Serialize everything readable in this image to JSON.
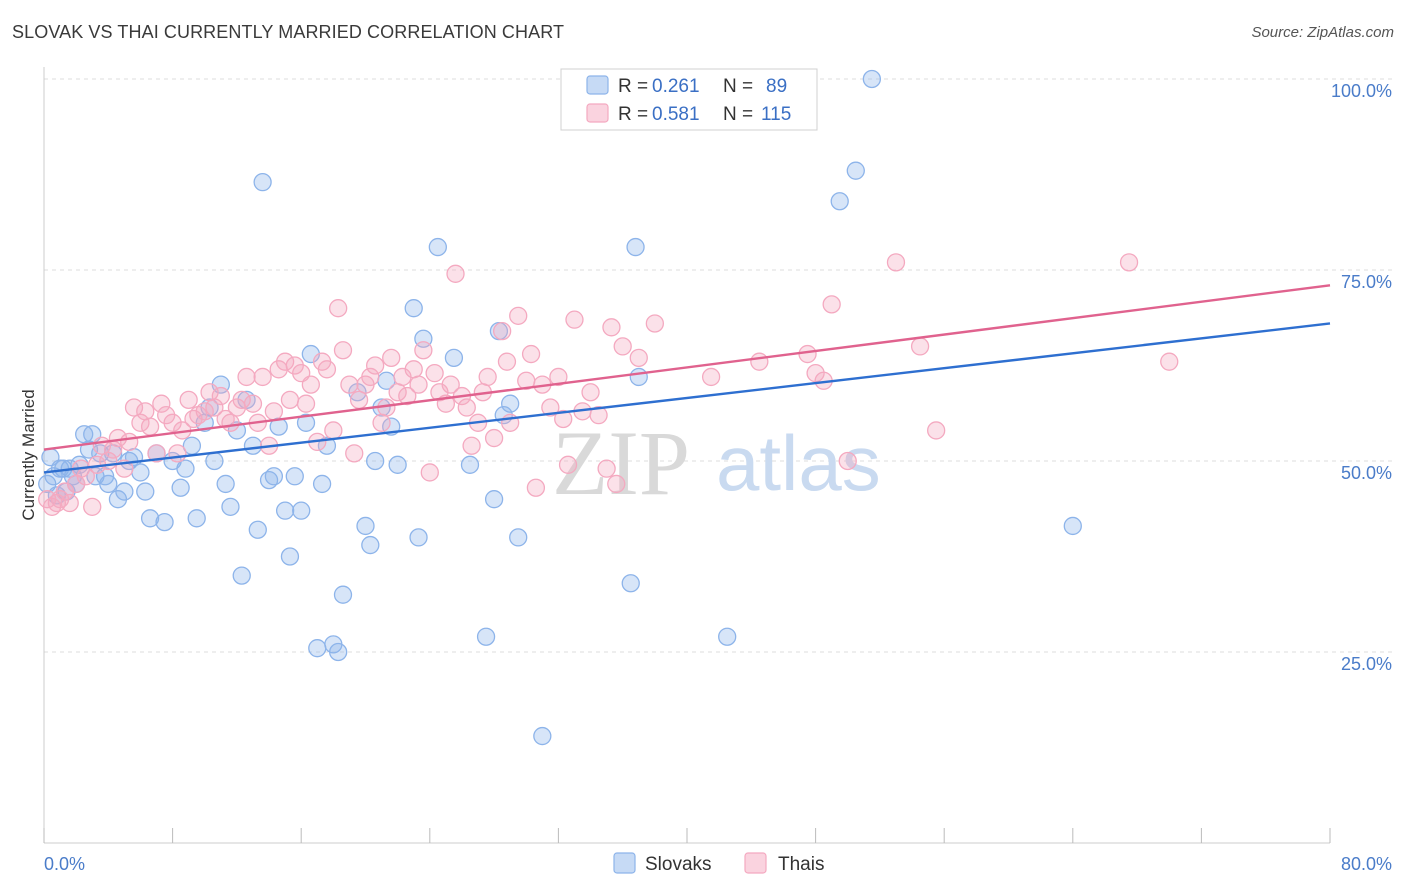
{
  "title": "SLOVAK VS THAI CURRENTLY MARRIED CORRELATION CHART",
  "source": "Source: ZipAtlas.com",
  "watermark": {
    "zip": "ZIP",
    "atlas": "atlas"
  },
  "colors": {
    "slovaks": "#8db4ea",
    "slovaks_line": "#2e6fd0",
    "thais": "#f4a9c0",
    "thais_line": "#e0628e",
    "tick": "#4a7cc9"
  },
  "legend": {
    "r_label": "R =",
    "n_label": "N =",
    "slovaks": {
      "r": "0.261",
      "n": "89"
    },
    "thais": {
      "r": "0.581",
      "n": "115"
    }
  },
  "chart_data": {
    "type": "scatter",
    "title": "SLOVAK VS THAI CURRENTLY MARRIED CORRELATION CHART",
    "xlabel": "",
    "ylabel": "Currently Married",
    "xlim": [
      0,
      80
    ],
    "ylim": [
      0,
      105
    ],
    "x_tick_labels": [
      "0.0%",
      "80.0%"
    ],
    "y_ticks": [
      25,
      50,
      75,
      100
    ],
    "y_tick_labels": [
      "25.0%",
      "50.0%",
      "75.0%",
      "100.0%"
    ],
    "grid": "horizontal dashed",
    "legend_placement": "top-center",
    "series": [
      {
        "name": "Slovaks",
        "r": 0.261,
        "n": 89,
        "trend": {
          "x": [
            0,
            80
          ],
          "y": [
            48.5,
            68.0
          ]
        },
        "points": [
          [
            0.2,
            47
          ],
          [
            0.4,
            50.5
          ],
          [
            0.6,
            48
          ],
          [
            0.8,
            45.5
          ],
          [
            1.0,
            49
          ],
          [
            1.2,
            49
          ],
          [
            1.4,
            46
          ],
          [
            1.6,
            49
          ],
          [
            1.8,
            48
          ],
          [
            2.0,
            47
          ],
          [
            2.2,
            49.5
          ],
          [
            2.5,
            53.5
          ],
          [
            2.8,
            51.5
          ],
          [
            3.0,
            53.5
          ],
          [
            3.2,
            48
          ],
          [
            3.5,
            51
          ],
          [
            3.8,
            48
          ],
          [
            4.0,
            47
          ],
          [
            4.3,
            51
          ],
          [
            4.6,
            45
          ],
          [
            5.0,
            46
          ],
          [
            5.3,
            50
          ],
          [
            5.6,
            50.5
          ],
          [
            6.0,
            48.5
          ],
          [
            6.3,
            46
          ],
          [
            6.6,
            42.5
          ],
          [
            7.0,
            51
          ],
          [
            7.5,
            42
          ],
          [
            8.0,
            50
          ],
          [
            8.5,
            46.5
          ],
          [
            8.8,
            49
          ],
          [
            9.2,
            52
          ],
          [
            9.5,
            42.5
          ],
          [
            10.0,
            55
          ],
          [
            10.3,
            57
          ],
          [
            10.6,
            50
          ],
          [
            11.0,
            60
          ],
          [
            11.3,
            47
          ],
          [
            11.6,
            44
          ],
          [
            12.0,
            54
          ],
          [
            12.3,
            35
          ],
          [
            12.6,
            58
          ],
          [
            13.0,
            52
          ],
          [
            13.3,
            41
          ],
          [
            13.6,
            86.5
          ],
          [
            14.0,
            47.5
          ],
          [
            14.3,
            48
          ],
          [
            14.6,
            54.5
          ],
          [
            15.0,
            43.5
          ],
          [
            15.3,
            37.5
          ],
          [
            15.6,
            48
          ],
          [
            16.0,
            43.5
          ],
          [
            16.3,
            55
          ],
          [
            16.6,
            64
          ],
          [
            17.0,
            25.5
          ],
          [
            17.3,
            47
          ],
          [
            17.6,
            52
          ],
          [
            18.0,
            26
          ],
          [
            18.3,
            25
          ],
          [
            18.6,
            32.5
          ],
          [
            19.5,
            59
          ],
          [
            20.0,
            41.5
          ],
          [
            20.3,
            39
          ],
          [
            20.6,
            50
          ],
          [
            21.0,
            57
          ],
          [
            21.3,
            60.5
          ],
          [
            21.6,
            54.5
          ],
          [
            22.0,
            49.5
          ],
          [
            23.0,
            70
          ],
          [
            23.3,
            40
          ],
          [
            23.6,
            66
          ],
          [
            24.5,
            78
          ],
          [
            25.5,
            63.5
          ],
          [
            26.5,
            49.5
          ],
          [
            27.5,
            27
          ],
          [
            28.0,
            45
          ],
          [
            28.3,
            67
          ],
          [
            28.6,
            56
          ],
          [
            29.0,
            57.5
          ],
          [
            29.5,
            40
          ],
          [
            31.0,
            14
          ],
          [
            36.5,
            34
          ],
          [
            36.8,
            78
          ],
          [
            37.0,
            61
          ],
          [
            42.5,
            27
          ],
          [
            49.5,
            84
          ],
          [
            50.5,
            88
          ],
          [
            51.5,
            100
          ],
          [
            64.0,
            41.5
          ]
        ]
      },
      {
        "name": "Thais",
        "r": 0.581,
        "n": 115,
        "trend": {
          "x": [
            0,
            80
          ],
          "y": [
            51.5,
            73.0
          ]
        },
        "points": [
          [
            0.2,
            45
          ],
          [
            0.5,
            44
          ],
          [
            0.8,
            44.5
          ],
          [
            1.0,
            45
          ],
          [
            1.3,
            46
          ],
          [
            1.6,
            44.5
          ],
          [
            2.0,
            47
          ],
          [
            2.3,
            49
          ],
          [
            2.6,
            48
          ],
          [
            3.0,
            44
          ],
          [
            3.3,
            49.5
          ],
          [
            3.6,
            52
          ],
          [
            4.0,
            50
          ],
          [
            4.3,
            51.5
          ],
          [
            4.6,
            53
          ],
          [
            5.0,
            49
          ],
          [
            5.3,
            52.5
          ],
          [
            5.6,
            57
          ],
          [
            6.0,
            55
          ],
          [
            6.3,
            56.5
          ],
          [
            6.6,
            54.5
          ],
          [
            7.0,
            51
          ],
          [
            7.3,
            57.5
          ],
          [
            7.6,
            56
          ],
          [
            8.0,
            55
          ],
          [
            8.3,
            51
          ],
          [
            8.6,
            54
          ],
          [
            9.0,
            58
          ],
          [
            9.3,
            55.5
          ],
          [
            9.6,
            56
          ],
          [
            10.0,
            56.5
          ],
          [
            10.3,
            59
          ],
          [
            10.6,
            57
          ],
          [
            11.0,
            58.5
          ],
          [
            11.3,
            55.5
          ],
          [
            11.6,
            55
          ],
          [
            12.0,
            57
          ],
          [
            12.3,
            58
          ],
          [
            12.6,
            61
          ],
          [
            13.0,
            57.5
          ],
          [
            13.3,
            55
          ],
          [
            13.6,
            61
          ],
          [
            14.0,
            52
          ],
          [
            14.3,
            56.5
          ],
          [
            14.6,
            62
          ],
          [
            15.0,
            63
          ],
          [
            15.3,
            58
          ],
          [
            15.6,
            62.5
          ],
          [
            16.0,
            61.5
          ],
          [
            16.3,
            57.5
          ],
          [
            16.6,
            60
          ],
          [
            17.0,
            52.5
          ],
          [
            17.3,
            63
          ],
          [
            17.6,
            62
          ],
          [
            18.0,
            54
          ],
          [
            18.3,
            70
          ],
          [
            18.6,
            64.5
          ],
          [
            19.0,
            60
          ],
          [
            19.3,
            51
          ],
          [
            19.6,
            58
          ],
          [
            20.0,
            60
          ],
          [
            20.3,
            61
          ],
          [
            20.6,
            62.5
          ],
          [
            21.0,
            55
          ],
          [
            21.3,
            57
          ],
          [
            21.6,
            63.5
          ],
          [
            22.0,
            59
          ],
          [
            22.3,
            61
          ],
          [
            22.6,
            58.5
          ],
          [
            23.0,
            62
          ],
          [
            23.3,
            60
          ],
          [
            23.6,
            64.5
          ],
          [
            24.0,
            48.5
          ],
          [
            24.3,
            61.5
          ],
          [
            24.6,
            59
          ],
          [
            25.0,
            57.5
          ],
          [
            25.3,
            60
          ],
          [
            25.6,
            74.5
          ],
          [
            26.0,
            58.5
          ],
          [
            26.3,
            57
          ],
          [
            26.6,
            52
          ],
          [
            27.0,
            55
          ],
          [
            27.3,
            59
          ],
          [
            27.6,
            61
          ],
          [
            28.0,
            53
          ],
          [
            28.5,
            67
          ],
          [
            28.8,
            63
          ],
          [
            29.0,
            55
          ],
          [
            29.5,
            69
          ],
          [
            30.0,
            60.5
          ],
          [
            30.3,
            64
          ],
          [
            30.6,
            46.5
          ],
          [
            31.0,
            60
          ],
          [
            31.5,
            57
          ],
          [
            32.0,
            61
          ],
          [
            32.3,
            55.5
          ],
          [
            32.6,
            49.5
          ],
          [
            33.0,
            68.5
          ],
          [
            33.5,
            56.5
          ],
          [
            34.0,
            59
          ],
          [
            34.5,
            56
          ],
          [
            35.0,
            49
          ],
          [
            35.3,
            67.5
          ],
          [
            35.6,
            47
          ],
          [
            36.0,
            65
          ],
          [
            37.0,
            63.5
          ],
          [
            38.0,
            68
          ],
          [
            41.5,
            61
          ],
          [
            44.5,
            63
          ],
          [
            47.5,
            64
          ],
          [
            48.0,
            61.5
          ],
          [
            48.5,
            60.5
          ],
          [
            49.0,
            70.5
          ],
          [
            50.0,
            50
          ],
          [
            53.0,
            76
          ],
          [
            54.5,
            65
          ],
          [
            55.5,
            54
          ],
          [
            67.5,
            76
          ],
          [
            70.0,
            63
          ]
        ]
      }
    ]
  },
  "bottom_legend": {
    "slovaks": "Slovaks",
    "thais": "Thais"
  }
}
